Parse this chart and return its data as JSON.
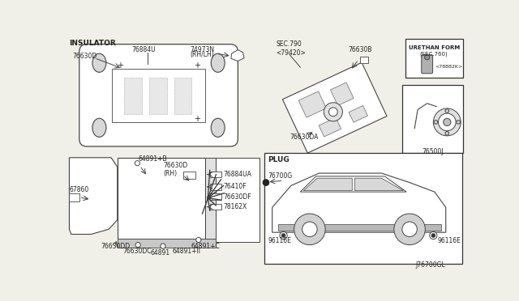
{
  "bg_color": "#f0f0e8",
  "line_color": "#444444",
  "text_color": "#222222",
  "diagram_id": "J76700GL",
  "labels": {
    "insulator": "INSULATOR",
    "plug": "PLUG",
    "urethan_form": "URETHAN FORM\n(SEC.760)",
    "sec790": "SEC.790\n<79420>",
    "rhlh": "74973N\n(RH/LH)",
    "part_76630D": "76630D",
    "part_76884U": "76884U",
    "part_76630B": "76630B",
    "part_76630DA": "76630DA",
    "part_78882K": "<78882K>",
    "part_76500J": "76500J",
    "part_67860": "67860",
    "part_64891B": "64891+B",
    "part_76630D_RH": "76630D\n(RH)",
    "part_76884UA": "76884UA",
    "part_76410F": "76410F",
    "part_76630DF": "76630DF",
    "part_78162X": "78162X",
    "part_76630DD": "76630DD",
    "part_76630DC": "76630DC",
    "part_64891": "64891",
    "part_64891II": "64891+II",
    "part_64891C": "64891+C",
    "part_76700G": "76700G",
    "part_96116E_L": "96116E",
    "part_96116E_R": "96116E"
  }
}
